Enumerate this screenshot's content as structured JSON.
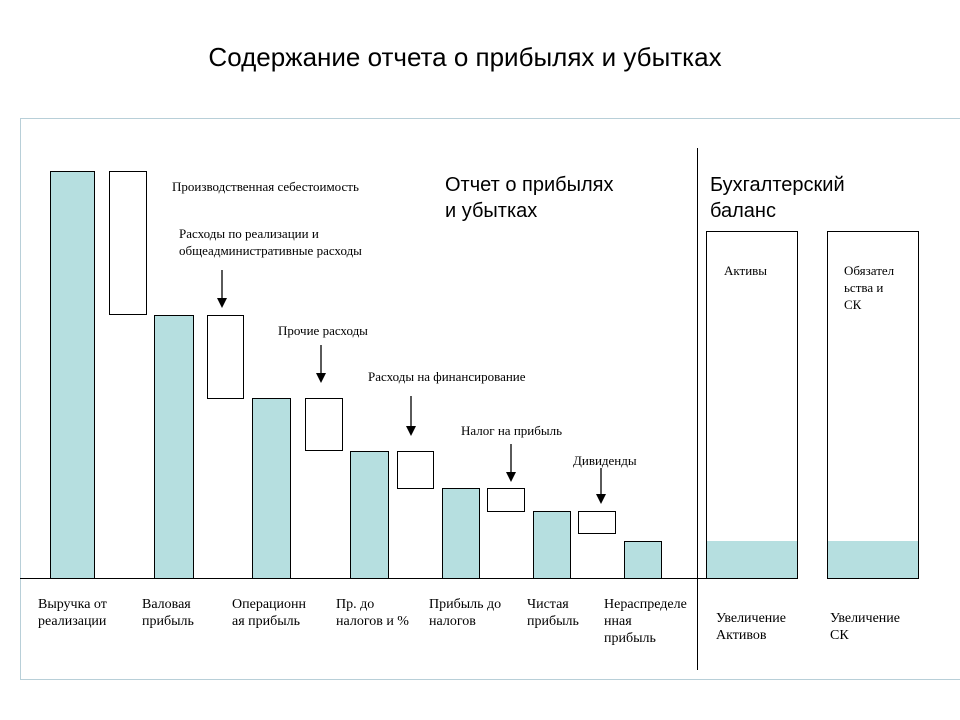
{
  "title": "Содержание отчета о прибылях и убытках",
  "colors": {
    "fill": "#b6dfe0",
    "line": "#000000",
    "frame": "#b8cfd8"
  },
  "section_pl": {
    "line1": "Отчет о прибылях",
    "line2": "и убытках"
  },
  "section_bs": {
    "line1": "Бухгалтерский",
    "line2": "баланс"
  },
  "costs": {
    "production": "Производственная себестоимость",
    "selling_line1": "Расходы по реализации и",
    "selling_line2": "общеадминистративные расходы",
    "other": "Прочие расходы",
    "financing": "Расходы на финансирование",
    "tax": "Налог на прибыль",
    "dividends": "Дивиденды"
  },
  "categories": [
    {
      "line1": "Выручка от",
      "line2": "реализации"
    },
    {
      "line1": "Валовая",
      "line2": "прибыль"
    },
    {
      "line1": "Операционн",
      "line2": "ая прибыль"
    },
    {
      "line1": "Пр. до",
      "line2": "налогов и %"
    },
    {
      "line1": "Прибыль до",
      "line2": "налогов"
    },
    {
      "line1": "Чистая",
      "line2": "прибыль"
    },
    {
      "line1": "Нераспределе",
      "line2": "нная",
      "line3": "прибыль"
    }
  ],
  "balance": {
    "assets_label": "Активы",
    "liab_line1": "Обязател",
    "liab_line2": "ьства и",
    "liab_line3": "СК",
    "inc_assets_line1": "Увеличение",
    "inc_assets_line2": "Активов",
    "inc_equity_line1": "Увеличение",
    "inc_equity_line2": "СК"
  }
}
